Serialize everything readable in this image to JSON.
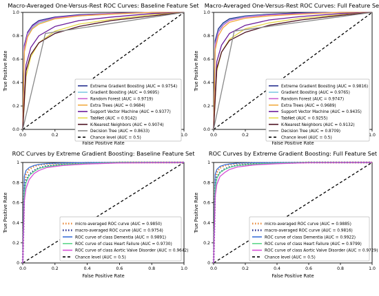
{
  "chart_data": [
    {
      "type": "line",
      "title": "Macro-Averaged One-Versus-Rest ROC Curves: Baseline Feature Set",
      "xlabel": "False Positive Rate",
      "ylabel": "True Positive Rate",
      "xlim": [
        0,
        1
      ],
      "ylim": [
        0,
        1
      ],
      "xticks": [
        "0.0",
        "0.2",
        "0.4",
        "0.6",
        "0.8",
        "1.0"
      ],
      "yticks": [
        "0.0",
        "0.2",
        "0.4",
        "0.6",
        "0.8",
        "1.0"
      ],
      "legend_position": "lower-right",
      "series": [
        {
          "name": "Extreme Gradient Boosting (AUC = 0.9754)",
          "color": "#1f2a8c",
          "style": "solid",
          "x": [
            0,
            0.01,
            0.03,
            0.06,
            0.1,
            0.2,
            0.35,
            0.55,
            0.8,
            1
          ],
          "y": [
            0,
            0.72,
            0.83,
            0.89,
            0.93,
            0.96,
            0.98,
            0.99,
            1,
            1
          ]
        },
        {
          "name": "Gradient Boosting (AUC = 0.9695)",
          "color": "#7ec8e3",
          "style": "solid",
          "x": [
            0,
            0.01,
            0.03,
            0.06,
            0.1,
            0.2,
            0.35,
            0.55,
            0.8,
            1
          ],
          "y": [
            0,
            0.68,
            0.8,
            0.87,
            0.91,
            0.95,
            0.97,
            0.985,
            1,
            1
          ]
        },
        {
          "name": "Random Forest (AUC = 0.9719)",
          "color": "#c85fd0",
          "style": "solid",
          "x": [
            0,
            0.01,
            0.03,
            0.06,
            0.1,
            0.2,
            0.35,
            0.55,
            0.8,
            1
          ],
          "y": [
            0,
            0.7,
            0.82,
            0.88,
            0.92,
            0.955,
            0.975,
            0.99,
            1,
            1
          ]
        },
        {
          "name": "Extra Trees (AUC = 0.9684)",
          "color": "#f2a93b",
          "style": "solid",
          "x": [
            0,
            0.01,
            0.03,
            0.06,
            0.1,
            0.2,
            0.35,
            0.55,
            0.8,
            1
          ],
          "y": [
            0,
            0.66,
            0.79,
            0.86,
            0.9,
            0.945,
            0.97,
            0.985,
            1,
            1
          ]
        },
        {
          "name": "Support Vector Machine (AUC = 0.9377)",
          "color": "#6a1b9a",
          "style": "solid",
          "x": [
            0,
            0.02,
            0.05,
            0.1,
            0.2,
            0.35,
            0.55,
            0.8,
            1
          ],
          "y": [
            0,
            0.55,
            0.7,
            0.8,
            0.88,
            0.93,
            0.96,
            0.99,
            1
          ]
        },
        {
          "name": "TabNet (AUC = 0.9142)",
          "color": "#e6d84a",
          "style": "solid",
          "x": [
            0,
            0.02,
            0.05,
            0.1,
            0.2,
            0.35,
            0.55,
            0.8,
            1
          ],
          "y": [
            0,
            0.45,
            0.62,
            0.74,
            0.84,
            0.9,
            0.94,
            0.98,
            1
          ]
        },
        {
          "name": "K-Nearest Neighbors (AUC = 0.9074)",
          "color": "#4a0f1f",
          "style": "solid",
          "x": [
            0,
            0.02,
            0.05,
            0.1,
            0.2,
            0.35,
            0.55,
            0.8,
            1
          ],
          "y": [
            0,
            0.5,
            0.64,
            0.74,
            0.82,
            0.88,
            0.93,
            0.97,
            1
          ]
        },
        {
          "name": "Decision Tree (AUC = 0.8633)",
          "color": "#888888",
          "style": "solid",
          "x": [
            0,
            0.14,
            1
          ],
          "y": [
            0,
            0.82,
            1
          ]
        },
        {
          "name": "Chance level (AUC = 0.5)",
          "color": "#000000",
          "style": "dashed",
          "x": [
            0,
            1
          ],
          "y": [
            0,
            1
          ]
        }
      ]
    },
    {
      "type": "line",
      "title": "Macro-Averaged One-Versus-Rest ROC Curves: Full Feature Set",
      "xlabel": "False Positive Rate",
      "ylabel": "True Positive Rate",
      "xlim": [
        0,
        1
      ],
      "ylim": [
        0,
        1
      ],
      "xticks": [
        "0.0",
        "0.2",
        "0.4",
        "0.6",
        "0.8",
        "1.0"
      ],
      "yticks": [
        "0.0",
        "0.2",
        "0.4",
        "0.6",
        "0.8",
        "1.0"
      ],
      "legend_position": "lower-right",
      "series": [
        {
          "name": "Extreme Gradient Boosting (AUC = 0.9816)",
          "color": "#1f2a8c",
          "style": "solid",
          "x": [
            0,
            0.01,
            0.03,
            0.06,
            0.1,
            0.2,
            0.35,
            0.55,
            0.8,
            1
          ],
          "y": [
            0,
            0.76,
            0.86,
            0.91,
            0.945,
            0.97,
            0.985,
            0.995,
            1,
            1
          ]
        },
        {
          "name": "Gradient Boosting (AUC = 0.9765)",
          "color": "#7ec8e3",
          "style": "solid",
          "x": [
            0,
            0.01,
            0.03,
            0.06,
            0.1,
            0.2,
            0.35,
            0.55,
            0.8,
            1
          ],
          "y": [
            0,
            0.73,
            0.84,
            0.9,
            0.935,
            0.965,
            0.98,
            0.99,
            1,
            1
          ]
        },
        {
          "name": "Random Forest (AUC = 0.9747)",
          "color": "#c85fd0",
          "style": "solid",
          "x": [
            0,
            0.01,
            0.03,
            0.06,
            0.1,
            0.2,
            0.35,
            0.55,
            0.8,
            1
          ],
          "y": [
            0,
            0.72,
            0.83,
            0.89,
            0.93,
            0.96,
            0.978,
            0.99,
            1,
            1
          ]
        },
        {
          "name": "Extra Trees (AUC = 0.9689)",
          "color": "#f2a93b",
          "style": "solid",
          "x": [
            0,
            0.01,
            0.03,
            0.06,
            0.1,
            0.2,
            0.35,
            0.55,
            0.8,
            1
          ],
          "y": [
            0,
            0.68,
            0.8,
            0.87,
            0.915,
            0.95,
            0.97,
            0.985,
            1,
            1
          ]
        },
        {
          "name": "Support Vector Machine (AUC = 0.9435)",
          "color": "#6a1b9a",
          "style": "solid",
          "x": [
            0,
            0.02,
            0.05,
            0.1,
            0.2,
            0.35,
            0.55,
            0.8,
            1
          ],
          "y": [
            0,
            0.58,
            0.72,
            0.82,
            0.89,
            0.935,
            0.965,
            0.99,
            1
          ]
        },
        {
          "name": "TabNet (AUC = 0.9255)",
          "color": "#e6d84a",
          "style": "solid",
          "x": [
            0,
            0.02,
            0.05,
            0.1,
            0.2,
            0.35,
            0.55,
            0.8,
            1
          ],
          "y": [
            0,
            0.5,
            0.66,
            0.77,
            0.86,
            0.91,
            0.95,
            0.98,
            1
          ]
        },
        {
          "name": "K-Nearest Neighbors (AUC = 0.9132)",
          "color": "#4a0f1f",
          "style": "solid",
          "x": [
            0,
            0.02,
            0.05,
            0.1,
            0.2,
            0.35,
            0.55,
            0.8,
            1
          ],
          "y": [
            0,
            0.52,
            0.66,
            0.76,
            0.83,
            0.89,
            0.935,
            0.975,
            1
          ]
        },
        {
          "name": "Decision Tree (AUC = 0.8709)",
          "color": "#888888",
          "style": "solid",
          "x": [
            0,
            0.13,
            1
          ],
          "y": [
            0,
            0.84,
            1
          ]
        },
        {
          "name": "Chance level (AUC = 0.5)",
          "color": "#000000",
          "style": "dashed",
          "x": [
            0,
            1
          ],
          "y": [
            0,
            1
          ]
        }
      ]
    },
    {
      "type": "line",
      "title": "ROC Curves by Extreme Gradient Boosting: Baseline Feature Set",
      "xlabel": "False Positive Rate",
      "ylabel": "True Positive Rate",
      "xlim": [
        0,
        1
      ],
      "ylim": [
        0,
        1
      ],
      "xticks": [
        "0.0",
        "0.2",
        "0.4",
        "0.6",
        "0.8",
        "1.0"
      ],
      "yticks": [
        "0",
        "0.2",
        "0.4",
        "0.6",
        "0.8",
        "1"
      ],
      "legend_position": "lower-right",
      "series": [
        {
          "name": "micro-averaged ROC curve (AUC = 0.9850)",
          "color": "#e8883a",
          "style": "dotted",
          "x": [
            0,
            0.01,
            0.02,
            0.04,
            0.07,
            0.1,
            0.15,
            0.25,
            0.4,
            0.6,
            1
          ],
          "y": [
            0,
            0.8,
            0.88,
            0.93,
            0.96,
            0.975,
            0.985,
            0.992,
            0.997,
            1,
            1
          ]
        },
        {
          "name": "macro-averaged ROC curve (AUC = 0.9754)",
          "color": "#1f2a8c",
          "style": "dotted",
          "x": [
            0,
            0.01,
            0.02,
            0.04,
            0.07,
            0.1,
            0.15,
            0.25,
            0.4,
            0.6,
            1
          ],
          "y": [
            0,
            0.72,
            0.82,
            0.88,
            0.92,
            0.945,
            0.965,
            0.98,
            0.99,
            1,
            1
          ]
        },
        {
          "name": "ROC curve of class Dementia (AUC = 0.9891)",
          "color": "#3a6fd8",
          "style": "solid",
          "x": [
            0,
            0.01,
            0.02,
            0.04,
            0.07,
            0.1,
            0.15,
            0.25,
            0.4,
            0.6,
            1
          ],
          "y": [
            0,
            0.86,
            0.92,
            0.95,
            0.97,
            0.98,
            0.99,
            0.995,
            1,
            1,
            1
          ]
        },
        {
          "name": "ROC curve of class Heart Failure (AUC = 0.9730)",
          "color": "#5cd68a",
          "style": "solid",
          "x": [
            0,
            0.01,
            0.02,
            0.04,
            0.07,
            0.1,
            0.15,
            0.25,
            0.4,
            0.6,
            1
          ],
          "y": [
            0,
            0.7,
            0.8,
            0.87,
            0.91,
            0.94,
            0.96,
            0.98,
            0.99,
            1,
            1
          ]
        },
        {
          "name": "ROC curve of class Aortic Valve Disorder (AUC = 0.9642)",
          "color": "#d64ed6",
          "style": "solid",
          "x": [
            0,
            0.01,
            0.02,
            0.04,
            0.07,
            0.1,
            0.15,
            0.25,
            0.4,
            0.6,
            1
          ],
          "y": [
            0,
            0.62,
            0.74,
            0.83,
            0.89,
            0.92,
            0.95,
            0.97,
            0.985,
            0.995,
            1
          ]
        },
        {
          "name": "Chance level (AUC = 0.5)",
          "color": "#000000",
          "style": "dashed",
          "x": [
            0,
            1
          ],
          "y": [
            0,
            1
          ]
        }
      ]
    },
    {
      "type": "line",
      "title": "ROC Curves by Extreme Gradient Boosting: Full Feature Set",
      "xlabel": "False Positive Rate",
      "ylabel": "True Positive Rate",
      "xlim": [
        0,
        1
      ],
      "ylim": [
        0,
        1
      ],
      "xticks": [
        "0.0",
        "0.2",
        "0.4",
        "0.6",
        "0.8",
        "1.0"
      ],
      "yticks": [
        "0",
        "0.2",
        "0.4",
        "0.6",
        "0.8",
        "1"
      ],
      "legend_position": "lower-right",
      "series": [
        {
          "name": "micro-averaged ROC curve (AUC = 0.9885)",
          "color": "#e8883a",
          "style": "dotted",
          "x": [
            0,
            0.01,
            0.02,
            0.04,
            0.07,
            0.1,
            0.15,
            0.25,
            0.4,
            0.6,
            1
          ],
          "y": [
            0,
            0.83,
            0.9,
            0.945,
            0.968,
            0.98,
            0.99,
            0.995,
            0.998,
            1,
            1
          ]
        },
        {
          "name": "macro-averaged ROC curve (AUC = 0.9816)",
          "color": "#1f2a8c",
          "style": "dotted",
          "x": [
            0,
            0.01,
            0.02,
            0.04,
            0.07,
            0.1,
            0.15,
            0.25,
            0.4,
            0.6,
            1
          ],
          "y": [
            0,
            0.76,
            0.85,
            0.9,
            0.935,
            0.955,
            0.972,
            0.985,
            0.993,
            1,
            1
          ]
        },
        {
          "name": "ROC curve of class Dementia (AUC = 0.9922)",
          "color": "#3a6fd8",
          "style": "solid",
          "x": [
            0,
            0.01,
            0.02,
            0.04,
            0.07,
            0.1,
            0.15,
            0.25,
            0.4,
            0.6,
            1
          ],
          "y": [
            0,
            0.88,
            0.93,
            0.96,
            0.977,
            0.985,
            0.993,
            0.997,
            1,
            1,
            1
          ]
        },
        {
          "name": "ROC curve of class Heart Failure (AUC = 0.9799)",
          "color": "#5cd68a",
          "style": "solid",
          "x": [
            0,
            0.01,
            0.02,
            0.04,
            0.07,
            0.1,
            0.15,
            0.25,
            0.4,
            0.6,
            1
          ],
          "y": [
            0,
            0.74,
            0.84,
            0.9,
            0.93,
            0.95,
            0.97,
            0.985,
            0.993,
            1,
            1
          ]
        },
        {
          "name": "ROC curve of class Aortic Valve Disorder (AUC = 0.9729)",
          "color": "#d64ed6",
          "style": "solid",
          "x": [
            0,
            0.01,
            0.02,
            0.04,
            0.07,
            0.1,
            0.15,
            0.25,
            0.4,
            0.6,
            1
          ],
          "y": [
            0,
            0.66,
            0.78,
            0.86,
            0.9,
            0.93,
            0.955,
            0.975,
            0.988,
            0.997,
            1
          ]
        },
        {
          "name": "Chance level (AUC = 0.5)",
          "color": "#000000",
          "style": "dashed",
          "x": [
            0,
            1
          ],
          "y": [
            0,
            1
          ]
        }
      ]
    }
  ]
}
